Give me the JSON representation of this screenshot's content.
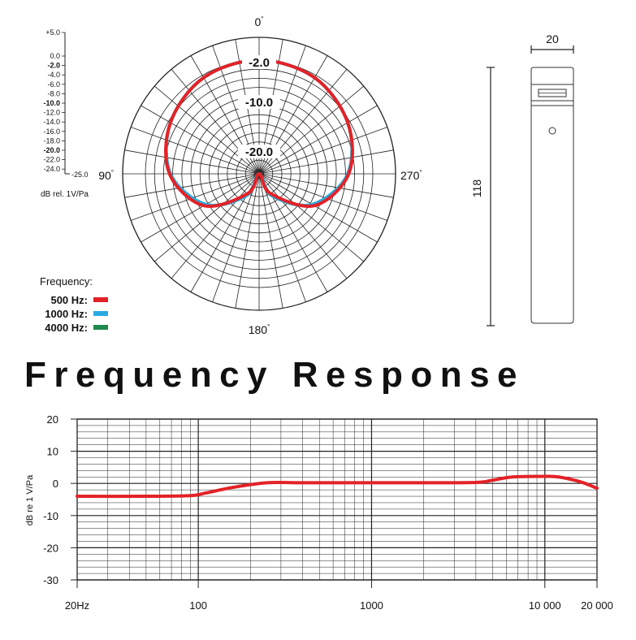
{
  "polar": {
    "title": "",
    "angle_labels": {
      "top": "0",
      "left": "90",
      "right": "270",
      "bottom": "180"
    },
    "degree_symbol": "°",
    "ring_labels": [
      "-2.0",
      "-10.0",
      "-20.0"
    ],
    "scale_labels": [
      "+5.0",
      "0.0",
      "-2.0",
      "-4.0",
      "-6.0",
      "-8.0",
      "-10.0",
      "-12.0",
      "-14.0",
      "-16.0",
      "-18.0",
      "-20.0",
      "-22.0",
      "-24.0"
    ],
    "scale_bold": [
      "-2.0",
      "-10.0",
      "-20.0"
    ],
    "scale_end_label": "-25.0",
    "scale_unit": "dB rel. 1V/Pa",
    "legend_title": "Frequency:",
    "legend": [
      {
        "label": "500 Hz:",
        "color": "#e32227"
      },
      {
        "label": "1000 Hz:",
        "color": "#29abe2"
      },
      {
        "label": "4000 Hz:",
        "color": "#1e8a4c"
      }
    ]
  },
  "mic_drawing": {
    "width_label": "20",
    "length_label": "118"
  },
  "frequency_title": "Frequency Response",
  "chart_data": {
    "type": "line",
    "title": "Frequency Response",
    "xlabel": "",
    "ylabel": "dB re 1 V/Pa",
    "x_scale": "log",
    "xlim": [
      20,
      20000
    ],
    "ylim": [
      -30,
      20
    ],
    "x_ticks": [
      {
        "value": 20,
        "label": "20Hz"
      },
      {
        "value": 100,
        "label": "100"
      },
      {
        "value": 1000,
        "label": "1000"
      },
      {
        "value": 10000,
        "label": "10 000"
      },
      {
        "value": 20000,
        "label": "20 000"
      }
    ],
    "y_ticks": [
      20,
      10,
      0,
      -10,
      -20,
      -30
    ],
    "grid": true,
    "series": [
      {
        "color": "#e32227",
        "x": [
          20,
          50,
          90,
          110,
          160,
          250,
          400,
          1000,
          2000,
          4000,
          5000,
          6500,
          10000,
          12000,
          16000,
          20000
        ],
        "y": [
          -4,
          -4,
          -3.8,
          -3,
          -1.2,
          0.2,
          0.2,
          0.2,
          0.2,
          0.3,
          1,
          2,
          2.2,
          2,
          0.5,
          -1.5
        ]
      }
    ],
    "polar_series": [
      {
        "frequency": "500 Hz",
        "color": "#e32227",
        "angles_deg": [
          0,
          30,
          60,
          90,
          120,
          150,
          180,
          210,
          240,
          270,
          300,
          330
        ],
        "db": [
          0,
          -0.6,
          -2.5,
          -5.3,
          -11,
          -20,
          -25,
          -20,
          -11,
          -5.3,
          -2.5,
          -0.6
        ]
      },
      {
        "frequency": "1000 Hz",
        "color": "#29abe2",
        "angles_deg": [
          0,
          30,
          60,
          90,
          120,
          150,
          180,
          210,
          240,
          270,
          300,
          330
        ],
        "db": [
          0,
          -0.6,
          -2.5,
          -5.5,
          -11.5,
          -19.5,
          -25,
          -19.5,
          -11.5,
          -5.5,
          -2.5,
          -0.6
        ]
      },
      {
        "frequency": "4000 Hz",
        "color": "#1e8a4c",
        "angles_deg": [
          0,
          30,
          60,
          90,
          120,
          150,
          180,
          210,
          240,
          270,
          300,
          330
        ],
        "db": [
          0,
          -0.6,
          -2.5,
          -5.5,
          -11.5,
          -19.5,
          -25,
          -19.5,
          -11.5,
          -5.5,
          -2.5,
          -0.6
        ]
      }
    ]
  }
}
